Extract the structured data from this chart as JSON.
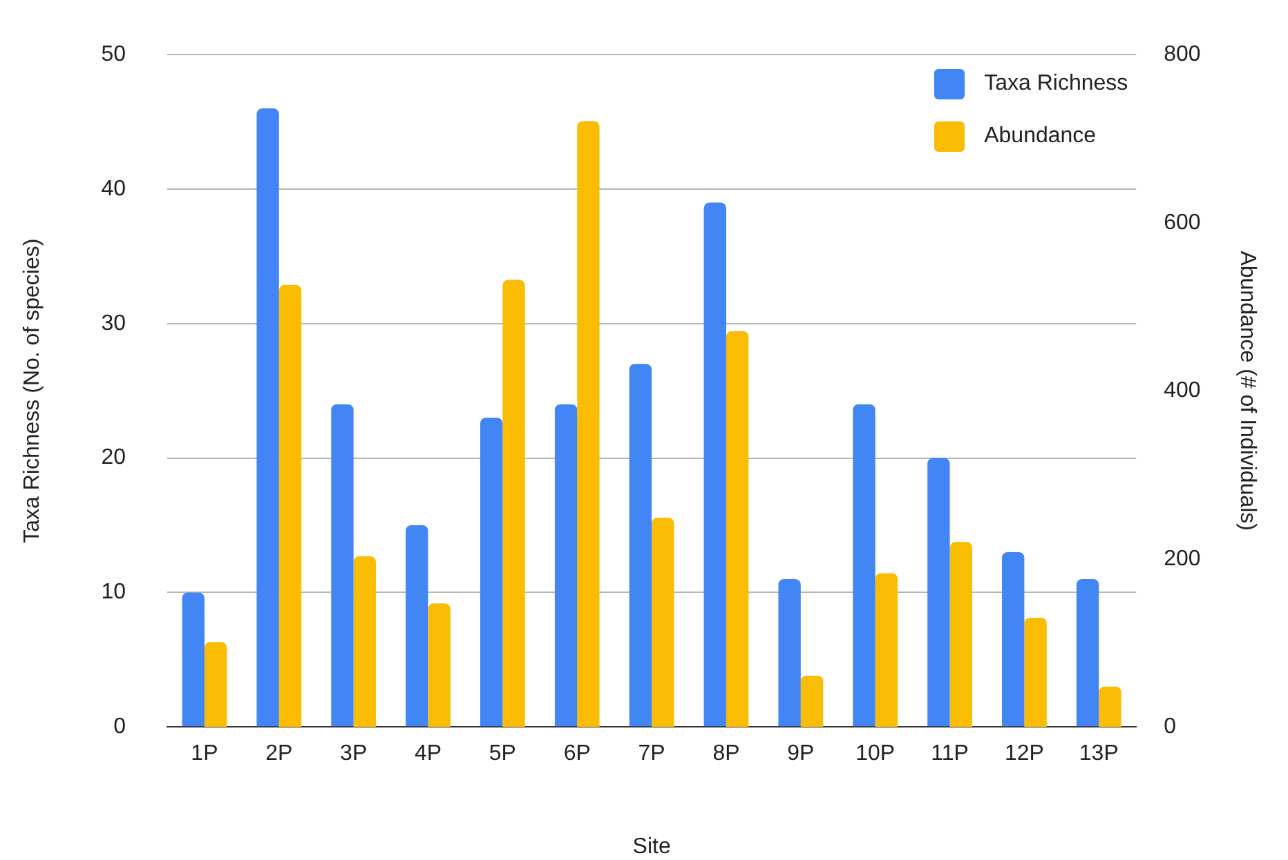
{
  "chart_data": {
    "type": "bar",
    "xlabel": "Site",
    "ylabel": "Taxa Richness (No. of species)",
    "y2label": "Abundance (# of Individuals)",
    "categories": [
      "1P",
      "2P",
      "3P",
      "4P",
      "5P",
      "6P",
      "7P",
      "8P",
      "9P",
      "10P",
      "11P",
      "12P",
      "13P"
    ],
    "series": [
      {
        "name": "Taxa Richness",
        "color": "#4285f4",
        "values": [
          10,
          46,
          24,
          15,
          23,
          24,
          27,
          39,
          11,
          24,
          20,
          13,
          11
        ]
      },
      {
        "name": "Abundance",
        "color": "#fbbc04",
        "axis": "y2",
        "values": [
          101,
          526,
          203,
          147,
          532,
          721,
          249,
          471,
          61,
          183,
          220,
          130,
          48
        ]
      }
    ],
    "ylim": [
      0,
      50
    ],
    "yticks": [
      0,
      10,
      20,
      30,
      40,
      50
    ],
    "y2lim": [
      0,
      800
    ],
    "y2ticks": [
      0,
      200,
      400,
      600,
      800
    ],
    "grid": "y",
    "legend": "top right"
  }
}
